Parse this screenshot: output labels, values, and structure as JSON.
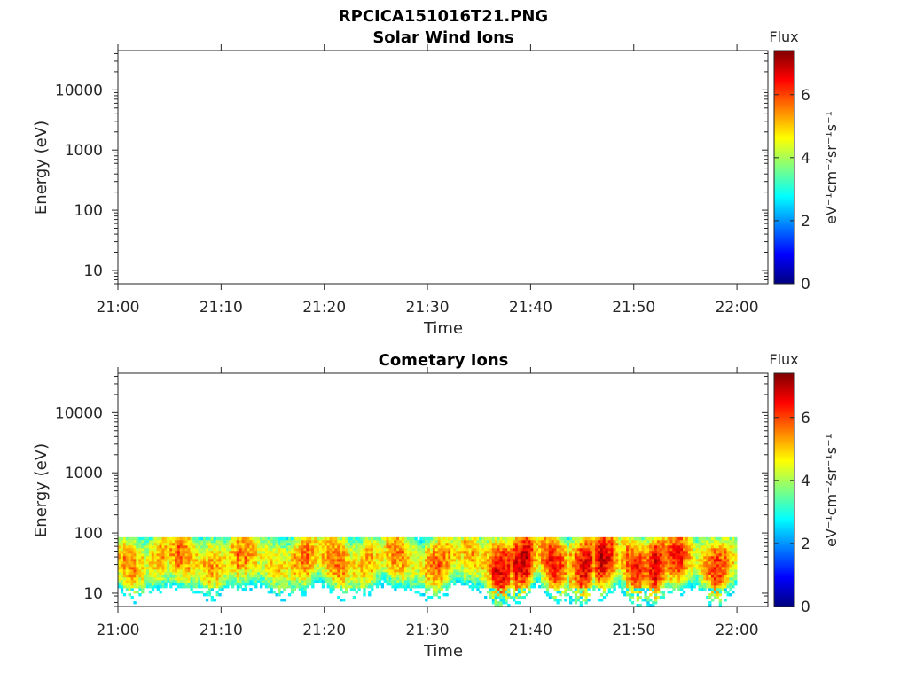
{
  "figure_title": "RPCICA151016T21.PNG",
  "chart_data": [
    {
      "type": "heatmap",
      "title": "Solar Wind Ions",
      "xlabel": "Time",
      "ylabel": "Energy (eV)",
      "y_scale": "log",
      "ylim": [
        6,
        45000
      ],
      "xlim": [
        "21:00",
        "22:03"
      ],
      "x_ticks": [
        "21:00",
        "21:10",
        "21:20",
        "21:30",
        "21:40",
        "21:50",
        "22:00"
      ],
      "y_ticks": [
        "10",
        "100",
        "1000",
        "10000"
      ],
      "colorbar": {
        "title": "Flux",
        "label": "eV⁻¹cm⁻²sr⁻¹s⁻¹",
        "range": [
          0,
          7.4
        ],
        "ticks": [
          "0",
          "2",
          "4",
          "6"
        ],
        "colormap": "jet"
      },
      "data_present": false,
      "grid": false
    },
    {
      "type": "heatmap",
      "title": "Cometary Ions",
      "xlabel": "Time",
      "ylabel": "Energy (eV)",
      "y_scale": "log",
      "ylim": [
        6,
        45000
      ],
      "xlim": [
        "21:00",
        "22:03"
      ],
      "x_ticks": [
        "21:00",
        "21:10",
        "21:20",
        "21:30",
        "21:40",
        "21:50",
        "22:00"
      ],
      "y_ticks": [
        "10",
        "100",
        "1000",
        "10000"
      ],
      "colorbar": {
        "title": "Flux",
        "label": "eV⁻¹cm⁻²sr⁻¹s⁻¹",
        "range": [
          0,
          7.4
        ],
        "ticks": [
          "0",
          "2",
          "4",
          "6"
        ],
        "colormap": "jet"
      },
      "data_present": true,
      "data_time_range": [
        "21:00",
        "22:00"
      ],
      "data_energy_range": [
        6,
        85
      ],
      "grid": false,
      "flux_peaks": [
        {
          "time": "21:01",
          "flux": 5.5
        },
        {
          "time": "21:04",
          "flux": 5.2
        },
        {
          "time": "21:06",
          "flux": 5.8
        },
        {
          "time": "21:09",
          "flux": 5.3
        },
        {
          "time": "21:12",
          "flux": 5.7
        },
        {
          "time": "21:15",
          "flux": 5.0
        },
        {
          "time": "21:18",
          "flux": 5.6
        },
        {
          "time": "21:21",
          "flux": 5.8
        },
        {
          "time": "21:24",
          "flux": 5.2
        },
        {
          "time": "21:27",
          "flux": 5.6
        },
        {
          "time": "21:31",
          "flux": 5.9
        },
        {
          "time": "21:34",
          "flux": 5.3
        },
        {
          "time": "21:37",
          "flux": 6.9
        },
        {
          "time": "21:39",
          "flux": 7.0
        },
        {
          "time": "21:42",
          "flux": 6.5
        },
        {
          "time": "21:45",
          "flux": 6.6
        },
        {
          "time": "21:47",
          "flux": 6.8
        },
        {
          "time": "21:50",
          "flux": 6.4
        },
        {
          "time": "21:52",
          "flux": 6.7
        },
        {
          "time": "21:54",
          "flux": 6.3
        },
        {
          "time": "21:58",
          "flux": 6.2
        }
      ]
    }
  ]
}
